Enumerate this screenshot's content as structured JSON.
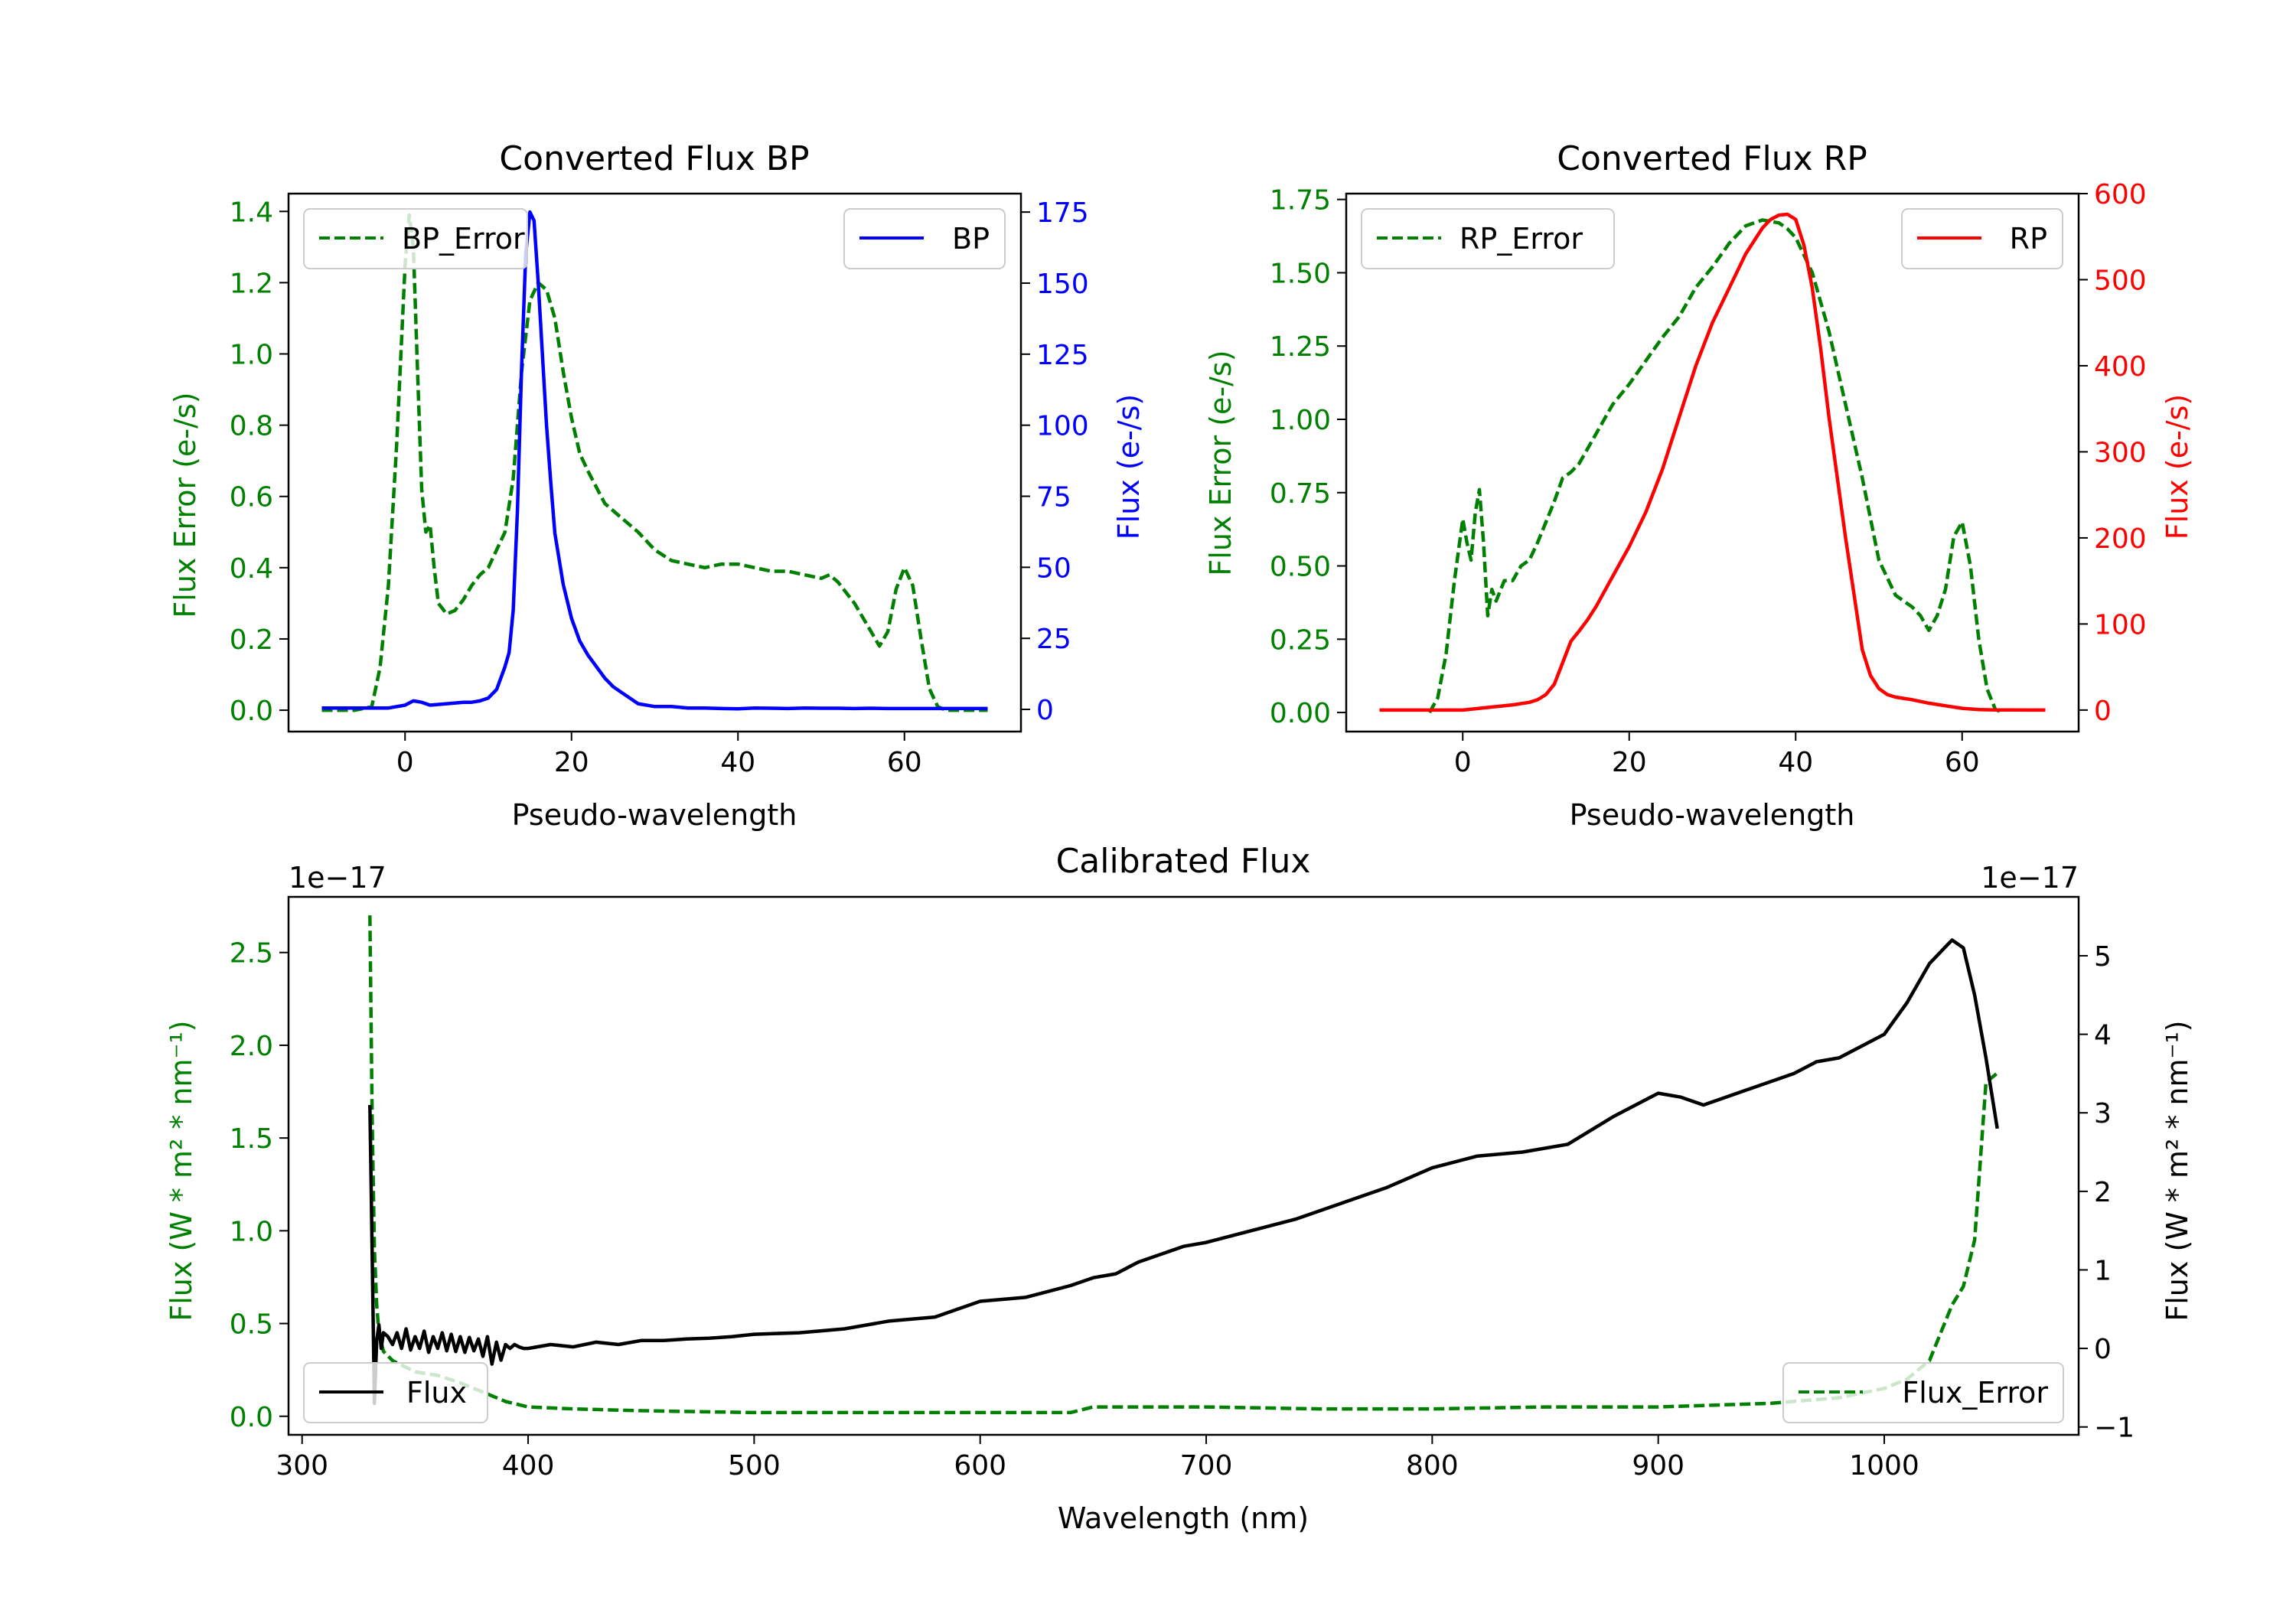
{
  "chart_data": [
    {
      "type": "line",
      "title": "Converted Flux BP",
      "xlabel": "Pseudo-wavelength",
      "xlim": [
        -14,
        74
      ],
      "x_ticks": [
        0,
        20,
        40,
        60
      ],
      "y_left": {
        "label": "Flux Error (e-/s)",
        "ylim": [
          -0.06,
          1.45
        ],
        "ticks": [
          0.0,
          0.2,
          0.4,
          0.6,
          0.8,
          1.0,
          1.2,
          1.4
        ],
        "tick_labels": [
          "0.0",
          "0.2",
          "0.4",
          "0.6",
          "0.8",
          "1.0",
          "1.2",
          "1.4"
        ],
        "color": "#008000"
      },
      "y_right": {
        "label": "Flux (e-/s)",
        "ylim": [
          -7.8,
          181.5
        ],
        "ticks": [
          0,
          25,
          50,
          75,
          100,
          125,
          150,
          175
        ],
        "tick_labels": [
          "0",
          "25",
          "50",
          "75",
          "100",
          "125",
          "150",
          "175"
        ],
        "color": "#0000ff"
      },
      "series": [
        {
          "name": "BP_Error",
          "axis": "left",
          "style": "dashed",
          "color": "#008000",
          "x": [
            -10,
            -6,
            -4,
            -3,
            -2,
            -1,
            0,
            0.5,
            1,
            1.5,
            2,
            2.5,
            3,
            3.5,
            4,
            5,
            6,
            7,
            8,
            9,
            10,
            11,
            12,
            13,
            14,
            15,
            16,
            17,
            18,
            19,
            20,
            21,
            22,
            24,
            26,
            28,
            30,
            32,
            34,
            36,
            38,
            40,
            42,
            44,
            46,
            48,
            50,
            51,
            52,
            53,
            54,
            55,
            56,
            57,
            58,
            59,
            60,
            61,
            62,
            63,
            64,
            65,
            66,
            68,
            70
          ],
          "values": [
            0.0,
            0.0,
            0.01,
            0.12,
            0.35,
            0.75,
            1.25,
            1.39,
            1.3,
            0.95,
            0.62,
            0.5,
            0.52,
            0.4,
            0.3,
            0.27,
            0.28,
            0.31,
            0.35,
            0.38,
            0.4,
            0.45,
            0.5,
            0.65,
            0.95,
            1.15,
            1.2,
            1.18,
            1.1,
            0.95,
            0.82,
            0.72,
            0.67,
            0.58,
            0.54,
            0.5,
            0.45,
            0.42,
            0.41,
            0.4,
            0.41,
            0.41,
            0.4,
            0.39,
            0.39,
            0.38,
            0.37,
            0.38,
            0.36,
            0.33,
            0.3,
            0.26,
            0.22,
            0.18,
            0.22,
            0.34,
            0.4,
            0.35,
            0.2,
            0.06,
            0.01,
            0.0,
            0.0,
            0.0,
            0.0
          ]
        },
        {
          "name": "BP",
          "axis": "right",
          "style": "solid",
          "color": "#0000ff",
          "x": [
            -10,
            -6,
            -4,
            -2,
            0,
            1,
            2,
            3,
            5,
            7,
            8,
            9,
            10,
            11,
            12,
            12.5,
            13,
            13.5,
            14,
            14.5,
            15,
            15.5,
            16,
            16.5,
            17,
            17.5,
            18,
            19,
            20,
            21,
            22,
            23,
            24,
            25,
            26,
            27,
            28,
            30,
            32,
            34,
            36,
            38,
            40,
            42,
            44,
            46,
            48,
            50,
            52,
            54,
            56,
            58,
            60,
            62,
            64,
            66,
            68,
            70
          ],
          "values": [
            0.5,
            0.5,
            0.5,
            0.5,
            1.5,
            3,
            2.5,
            1.5,
            2,
            2.5,
            2.5,
            3,
            4,
            7,
            15,
            20,
            35,
            70,
            120,
            160,
            175,
            172,
            150,
            125,
            100,
            80,
            62,
            44,
            32,
            24,
            19,
            15,
            11,
            8,
            6,
            4,
            2,
            1,
            1,
            0.5,
            0.5,
            0.3,
            0.2,
            0.5,
            0.4,
            0.3,
            0.5,
            0.4,
            0.4,
            0.3,
            0.4,
            0.3,
            0.3,
            0.3,
            0.3,
            0.3,
            0.3,
            0.3
          ]
        }
      ],
      "legend_left": {
        "label": "BP_Error",
        "location": "upper left"
      },
      "legend_right": {
        "label": "BP",
        "location": "upper right"
      }
    },
    {
      "type": "line",
      "title": "Converted Flux RP",
      "xlabel": "Pseudo-wavelength",
      "xlim": [
        -14,
        74
      ],
      "x_ticks": [
        0,
        20,
        40,
        60
      ],
      "y_left": {
        "label": "Flux Error (e-/s)",
        "ylim": [
          -0.065,
          1.77
        ],
        "ticks": [
          0.0,
          0.25,
          0.5,
          0.75,
          1.0,
          1.25,
          1.5,
          1.75
        ],
        "tick_labels": [
          "0.00",
          "0.25",
          "0.50",
          "0.75",
          "1.00",
          "1.25",
          "1.50",
          "1.75"
        ],
        "color": "#008000"
      },
      "y_right": {
        "label": "Flux (e-/s)",
        "ylim": [
          -25,
          600
        ],
        "ticks": [
          0,
          100,
          200,
          300,
          400,
          500,
          600
        ],
        "tick_labels": [
          "0",
          "100",
          "200",
          "300",
          "400",
          "500",
          "600"
        ],
        "color": "#ff0000"
      },
      "series": [
        {
          "name": "RP_Error",
          "axis": "left",
          "style": "dashed",
          "color": "#008000",
          "x": [
            -4,
            -3,
            -2,
            -1,
            0,
            0.5,
            1,
            1.5,
            2,
            2.5,
            3,
            3.5,
            4,
            5,
            6,
            7,
            8,
            9,
            10,
            11,
            12,
            13,
            14,
            16,
            18,
            20,
            22,
            24,
            26,
            28,
            30,
            32,
            34,
            36,
            38,
            39,
            40,
            42,
            44,
            46,
            48,
            50,
            52,
            54,
            55,
            56,
            57,
            58,
            59,
            60,
            61,
            62,
            63,
            64,
            65
          ],
          "values": [
            0.0,
            0.05,
            0.2,
            0.45,
            0.66,
            0.58,
            0.52,
            0.68,
            0.76,
            0.58,
            0.33,
            0.42,
            0.38,
            0.45,
            0.45,
            0.5,
            0.52,
            0.58,
            0.65,
            0.72,
            0.8,
            0.82,
            0.85,
            0.95,
            1.05,
            1.12,
            1.2,
            1.28,
            1.35,
            1.45,
            1.52,
            1.6,
            1.66,
            1.68,
            1.67,
            1.65,
            1.62,
            1.5,
            1.3,
            1.05,
            0.8,
            0.52,
            0.4,
            0.36,
            0.33,
            0.28,
            0.33,
            0.42,
            0.6,
            0.65,
            0.5,
            0.25,
            0.08,
            0.01,
            0.0
          ]
        },
        {
          "name": "RP",
          "axis": "right",
          "style": "solid",
          "color": "#ff0000",
          "x": [
            -10,
            -5,
            0,
            2,
            4,
            6,
            8,
            9,
            10,
            11,
            12,
            13,
            14,
            15,
            16,
            18,
            20,
            22,
            24,
            26,
            28,
            30,
            32,
            34,
            36,
            37,
            38,
            39,
            40,
            41,
            42,
            43,
            44,
            46,
            48,
            49,
            50,
            51,
            52,
            54,
            56,
            58,
            60,
            62,
            64,
            66,
            68,
            70
          ],
          "values": [
            0,
            0,
            0,
            2,
            4,
            6,
            9,
            12,
            18,
            30,
            55,
            80,
            92,
            105,
            120,
            155,
            190,
            230,
            280,
            340,
            400,
            450,
            490,
            530,
            560,
            570,
            575,
            576,
            570,
            540,
            490,
            420,
            340,
            200,
            70,
            40,
            25,
            18,
            15,
            12,
            8,
            5,
            2,
            0.5,
            0.2,
            0.1,
            0,
            0
          ]
        }
      ],
      "legend_left": {
        "label": "RP_Error",
        "location": "upper left"
      },
      "legend_right": {
        "label": "RP",
        "location": "upper right"
      }
    },
    {
      "type": "line",
      "title": "Calibrated Flux",
      "xlabel": "Wavelength (nm)",
      "xlim": [
        294,
        1086
      ],
      "x_ticks": [
        300,
        400,
        500,
        600,
        700,
        800,
        900,
        1000
      ],
      "y_left": {
        "label": "Flux (W * m² * nm⁻¹)",
        "offset_label": "1e−17",
        "ylim": [
          -0.1,
          2.8
        ],
        "ticks": [
          0.0,
          0.5,
          1.0,
          1.5,
          2.0,
          2.5
        ],
        "tick_labels": [
          "0.0",
          "0.5",
          "1.0",
          "1.5",
          "2.0",
          "2.5"
        ],
        "color": "#008000"
      },
      "y_right": {
        "label": "Flux (W * m² * nm⁻¹)",
        "offset_label": "1e−17",
        "ylim": [
          -1.1,
          5.75
        ],
        "ticks": [
          -1,
          0,
          1,
          2,
          3,
          4,
          5
        ],
        "tick_labels": [
          "−1",
          "0",
          "1",
          "2",
          "3",
          "4",
          "5"
        ],
        "color": "#000000"
      },
      "series": [
        {
          "name": "Flux_Error",
          "axis": "left",
          "style": "dashed",
          "color": "#008000",
          "x": [
            330,
            331,
            332,
            333,
            334,
            336,
            340,
            345,
            350,
            360,
            370,
            380,
            390,
            400,
            420,
            450,
            500,
            550,
            600,
            640,
            650,
            700,
            750,
            800,
            850,
            900,
            950,
            980,
            1000,
            1010,
            1020,
            1025,
            1030,
            1035,
            1040,
            1045,
            1050
          ],
          "values": [
            2.7,
            1.6,
            0.9,
            0.6,
            0.45,
            0.35,
            0.3,
            0.27,
            0.24,
            0.22,
            0.18,
            0.13,
            0.08,
            0.05,
            0.04,
            0.03,
            0.02,
            0.02,
            0.02,
            0.02,
            0.05,
            0.05,
            0.04,
            0.04,
            0.05,
            0.05,
            0.07,
            0.1,
            0.15,
            0.2,
            0.3,
            0.45,
            0.6,
            0.7,
            0.95,
            1.8,
            1.85
          ]
        },
        {
          "name": "Flux",
          "axis": "right",
          "style": "solid",
          "color": "#000000",
          "x": [
            330,
            331,
            332,
            333,
            334,
            335,
            336,
            338,
            340,
            342,
            344,
            346,
            348,
            350,
            352,
            354,
            356,
            358,
            360,
            362,
            364,
            366,
            368,
            370,
            372,
            374,
            376,
            378,
            380,
            382,
            384,
            386,
            388,
            390,
            392,
            394,
            396,
            398,
            400,
            410,
            420,
            430,
            440,
            450,
            460,
            470,
            480,
            490,
            500,
            520,
            540,
            560,
            580,
            600,
            620,
            640,
            650,
            660,
            670,
            680,
            690,
            700,
            720,
            740,
            760,
            780,
            800,
            820,
            840,
            860,
            880,
            900,
            910,
            920,
            940,
            960,
            970,
            980,
            1000,
            1010,
            1020,
            1025,
            1030,
            1035,
            1040,
            1045,
            1050
          ],
          "values": [
            3.1,
            1.2,
            -0.7,
            0.1,
            0.3,
            0.0,
            0.2,
            0.15,
            0.05,
            0.2,
            0.0,
            0.25,
            -0.02,
            0.15,
            0.0,
            0.22,
            -0.05,
            0.15,
            0.0,
            0.2,
            -0.03,
            0.18,
            -0.04,
            0.15,
            -0.05,
            0.14,
            -0.03,
            0.12,
            -0.1,
            0.15,
            -0.2,
            0.08,
            -0.15,
            0.05,
            0.0,
            0.05,
            0.02,
            0.0,
            0.0,
            0.05,
            0.02,
            0.08,
            0.05,
            0.1,
            0.1,
            0.12,
            0.13,
            0.15,
            0.18,
            0.2,
            0.25,
            0.35,
            0.4,
            0.6,
            0.65,
            0.8,
            0.9,
            0.95,
            1.1,
            1.2,
            1.3,
            1.35,
            1.5,
            1.65,
            1.85,
            2.05,
            2.3,
            2.45,
            2.5,
            2.6,
            2.95,
            3.25,
            3.2,
            3.1,
            3.3,
            3.5,
            3.65,
            3.7,
            4.0,
            4.4,
            4.9,
            5.05,
            5.2,
            5.1,
            4.5,
            3.7,
            2.8
          ]
        }
      ],
      "legend_left": {
        "label": "Flux",
        "location": "lower left"
      },
      "legend_right": {
        "label": "Flux_Error",
        "location": "lower right"
      }
    }
  ]
}
